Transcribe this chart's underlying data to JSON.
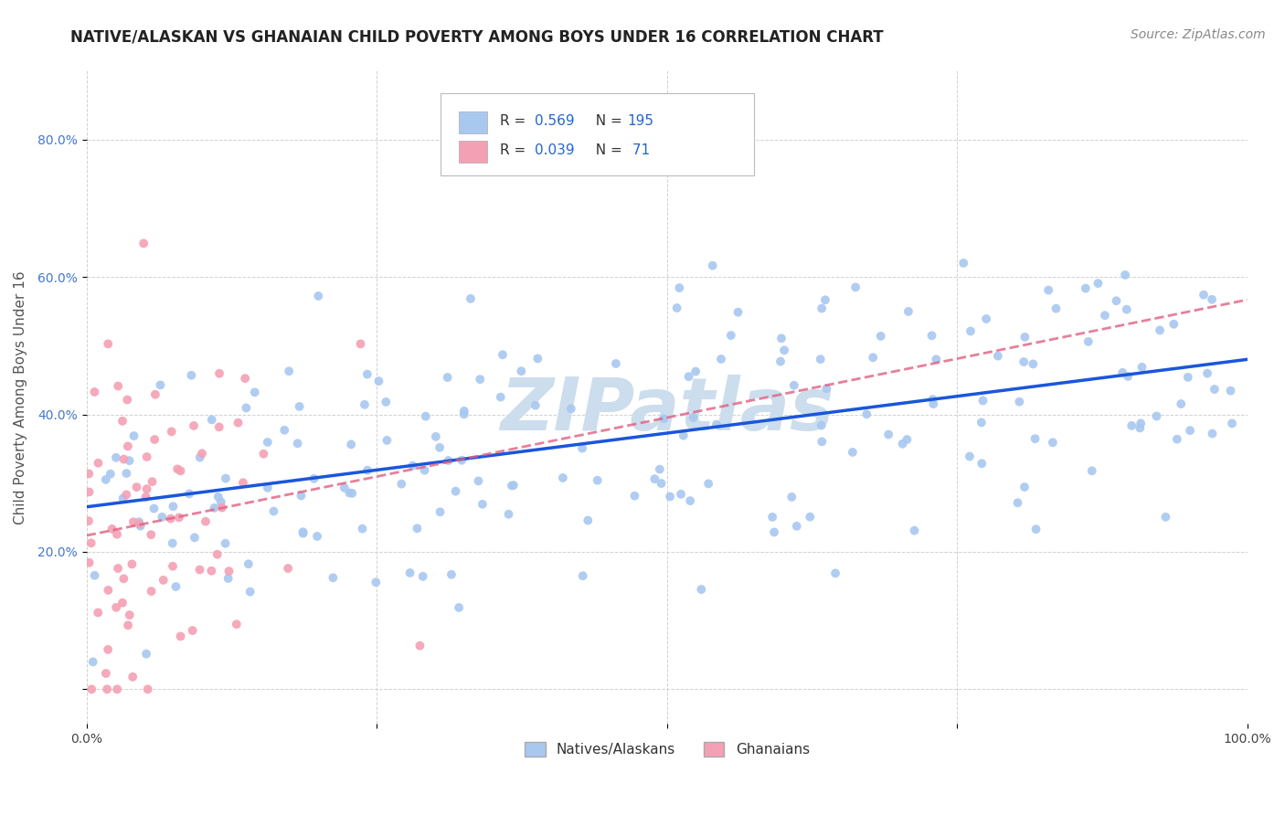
{
  "title": "NATIVE/ALASKAN VS GHANAIAN CHILD POVERTY AMONG BOYS UNDER 16 CORRELATION CHART",
  "source": "Source: ZipAtlas.com",
  "ylabel": "Child Poverty Among Boys Under 16",
  "xlim": [
    0,
    1
  ],
  "ylim": [
    -0.05,
    0.9
  ],
  "yticks": [
    0.0,
    0.2,
    0.4,
    0.6,
    0.8
  ],
  "xticks": [
    0.0,
    0.25,
    0.5,
    0.75,
    1.0
  ],
  "xtick_labels": [
    "0.0%",
    "",
    "",
    "",
    "100.0%"
  ],
  "ytick_labels": [
    "",
    "20.0%",
    "40.0%",
    "60.0%",
    "80.0%"
  ],
  "native_color": "#a8c8f0",
  "ghanaian_color": "#f4a0b4",
  "native_line_color": "#1a56db",
  "ghanaian_line_color": "#e06080",
  "watermark": "ZIPatlas",
  "watermark_color": "#ccdded",
  "R_native": 0.569,
  "N_native": 195,
  "R_ghanaian": 0.039,
  "N_ghanaian": 71,
  "legend_labels": [
    "Natives/Alaskans",
    "Ghanaians"
  ],
  "title_fontsize": 12,
  "axis_label_fontsize": 11,
  "tick_fontsize": 10,
  "source_fontsize": 10,
  "background_color": "#ffffff",
  "grid_color": "#cccccc",
  "seed_native": 42,
  "seed_ghanaian": 7
}
